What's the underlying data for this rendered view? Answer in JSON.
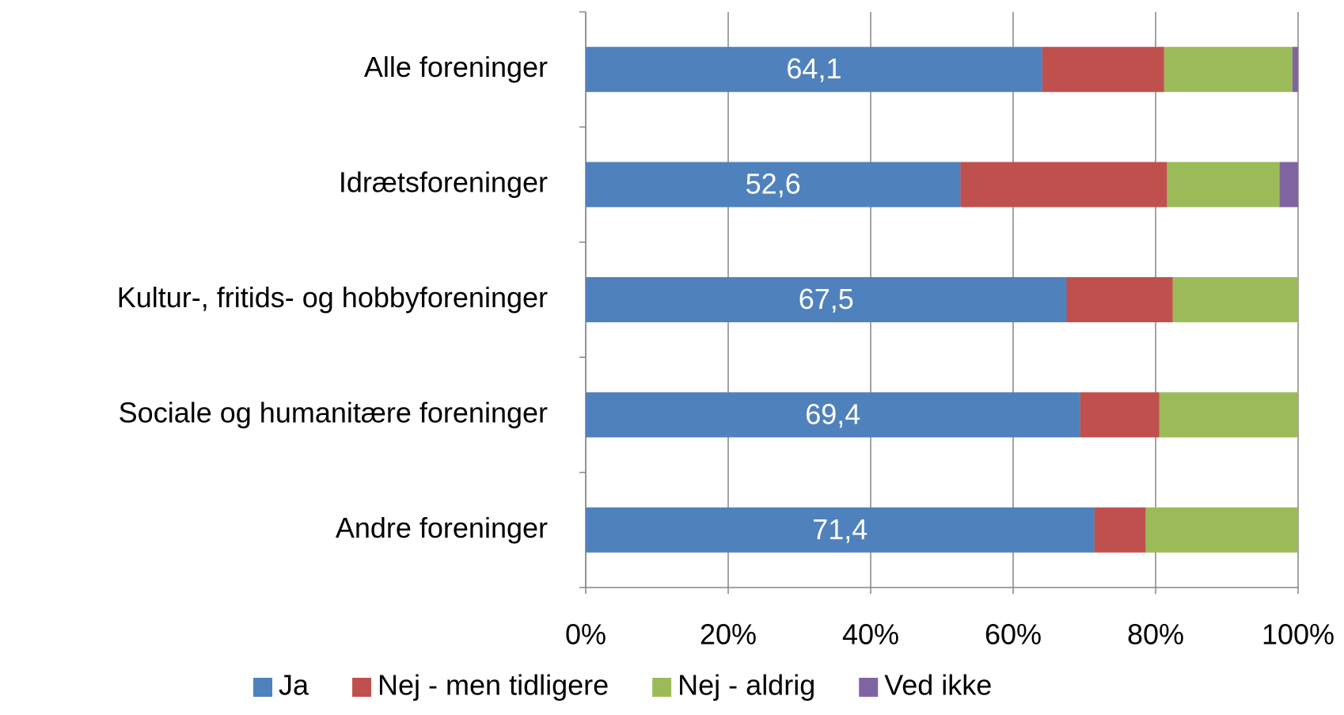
{
  "chart_data": {
    "type": "stacked-bar-horizontal",
    "categories": [
      "Alle foreninger",
      "Idrætsforeninger",
      "Kultur-, fritids- og hobbyforeninger",
      "Sociale og humanitære foreninger",
      "Andre foreninger"
    ],
    "series": [
      {
        "name": "Ja",
        "color": "#4f81bd",
        "values": [
          64.1,
          52.6,
          67.5,
          69.4,
          71.4
        ],
        "value_labels": [
          "64,1",
          "52,6",
          "67,5",
          "69,4",
          "71,4"
        ]
      },
      {
        "name": "Nej - men tidligere",
        "color": "#c0504d",
        "values": [
          17.1,
          29.0,
          14.9,
          11.1,
          7.2
        ]
      },
      {
        "name": "Nej - aldrig",
        "color": "#9bbb59",
        "values": [
          18.0,
          15.8,
          17.6,
          19.5,
          21.4
        ]
      },
      {
        "name": "Ved ikke",
        "color": "#8064a2",
        "values": [
          0.8,
          2.6,
          0,
          0,
          0
        ]
      }
    ],
    "xlim": [
      0,
      100
    ],
    "xticks": [
      {
        "value": 0,
        "label": "0%"
      },
      {
        "value": 20,
        "label": "20%"
      },
      {
        "value": 40,
        "label": "40%"
      },
      {
        "value": 60,
        "label": "60%"
      },
      {
        "value": 80,
        "label": "80%"
      },
      {
        "value": 100,
        "label": "100%"
      }
    ],
    "grid": true
  }
}
